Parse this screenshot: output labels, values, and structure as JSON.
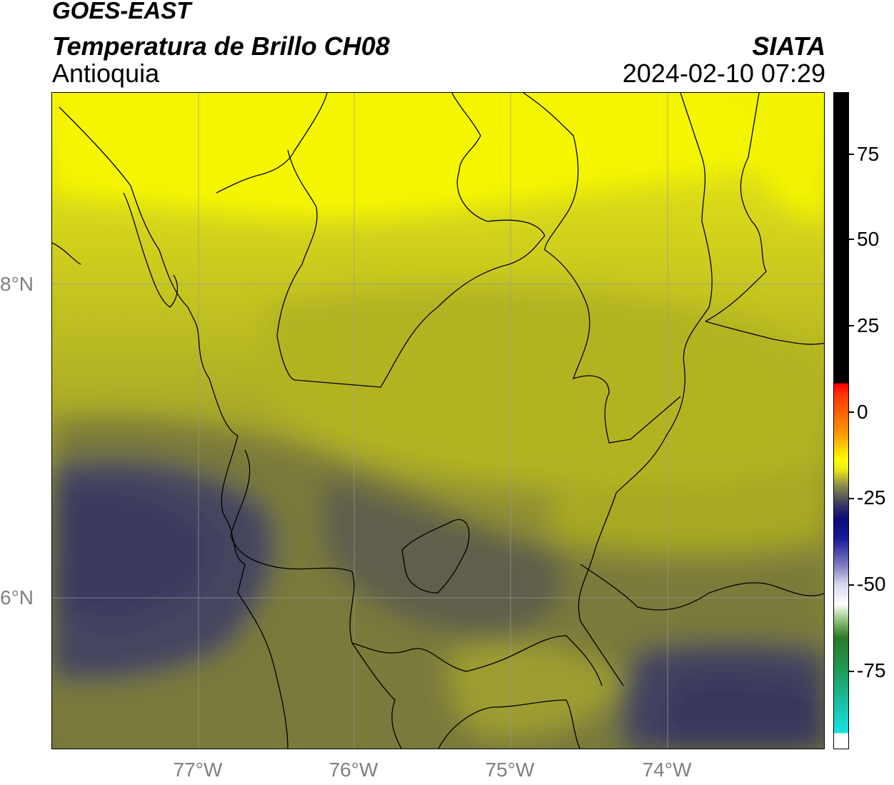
{
  "header": {
    "satellite": "GOES-EAST",
    "product": "Temperatura de Brillo CH08",
    "region": "Antioquia",
    "organization": "SIATA",
    "timestamp": "2024-02-10 07:29"
  },
  "map": {
    "lat_ticks": [
      "8°N",
      "6°N"
    ],
    "lon_ticks": [
      "77°W",
      "76°W",
      "75°W",
      "74°W"
    ],
    "field_colors": {
      "coldest": "#3f3f5e",
      "cold": "#5c5c50",
      "mid": "#8a8a34",
      "warm": "#b3b322",
      "warmest": "#f4f400"
    }
  },
  "colorbar": {
    "ticks": [
      "75",
      "50",
      "25",
      "0",
      "-25",
      "-50",
      "-75"
    ]
  }
}
